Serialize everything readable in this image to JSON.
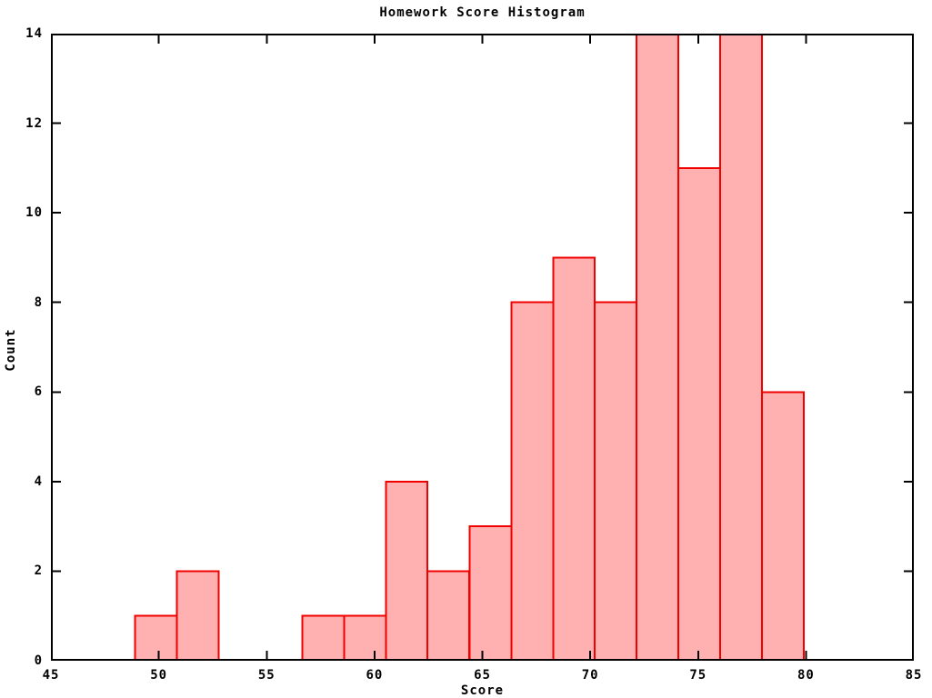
{
  "chart_data": {
    "type": "bar",
    "subtype": "histogram",
    "title": "Homework Score Histogram",
    "xlabel": "Score",
    "ylabel": "Count",
    "xlim": [
      45,
      85
    ],
    "ylim": [
      0,
      14
    ],
    "xticks": [
      45,
      50,
      55,
      60,
      65,
      70,
      75,
      80,
      85
    ],
    "yticks": [
      0,
      2,
      4,
      6,
      8,
      10,
      12,
      14
    ],
    "bin_edges": [
      48.9,
      50.84,
      52.78,
      54.71,
      56.65,
      58.59,
      60.53,
      62.46,
      64.4,
      66.34,
      68.28,
      70.21,
      72.15,
      74.09,
      76.03,
      77.96,
      79.9
    ],
    "counts": [
      1,
      2,
      0,
      0,
      1,
      1,
      4,
      2,
      3,
      8,
      9,
      8,
      14,
      11,
      14,
      6
    ],
    "total_count": 84,
    "grid": false,
    "legend": "none",
    "colors": {
      "bar_fill": "#ffb0b0",
      "bar_edge": "#f10000",
      "axis": "#000000",
      "background": "#ffffff"
    }
  }
}
